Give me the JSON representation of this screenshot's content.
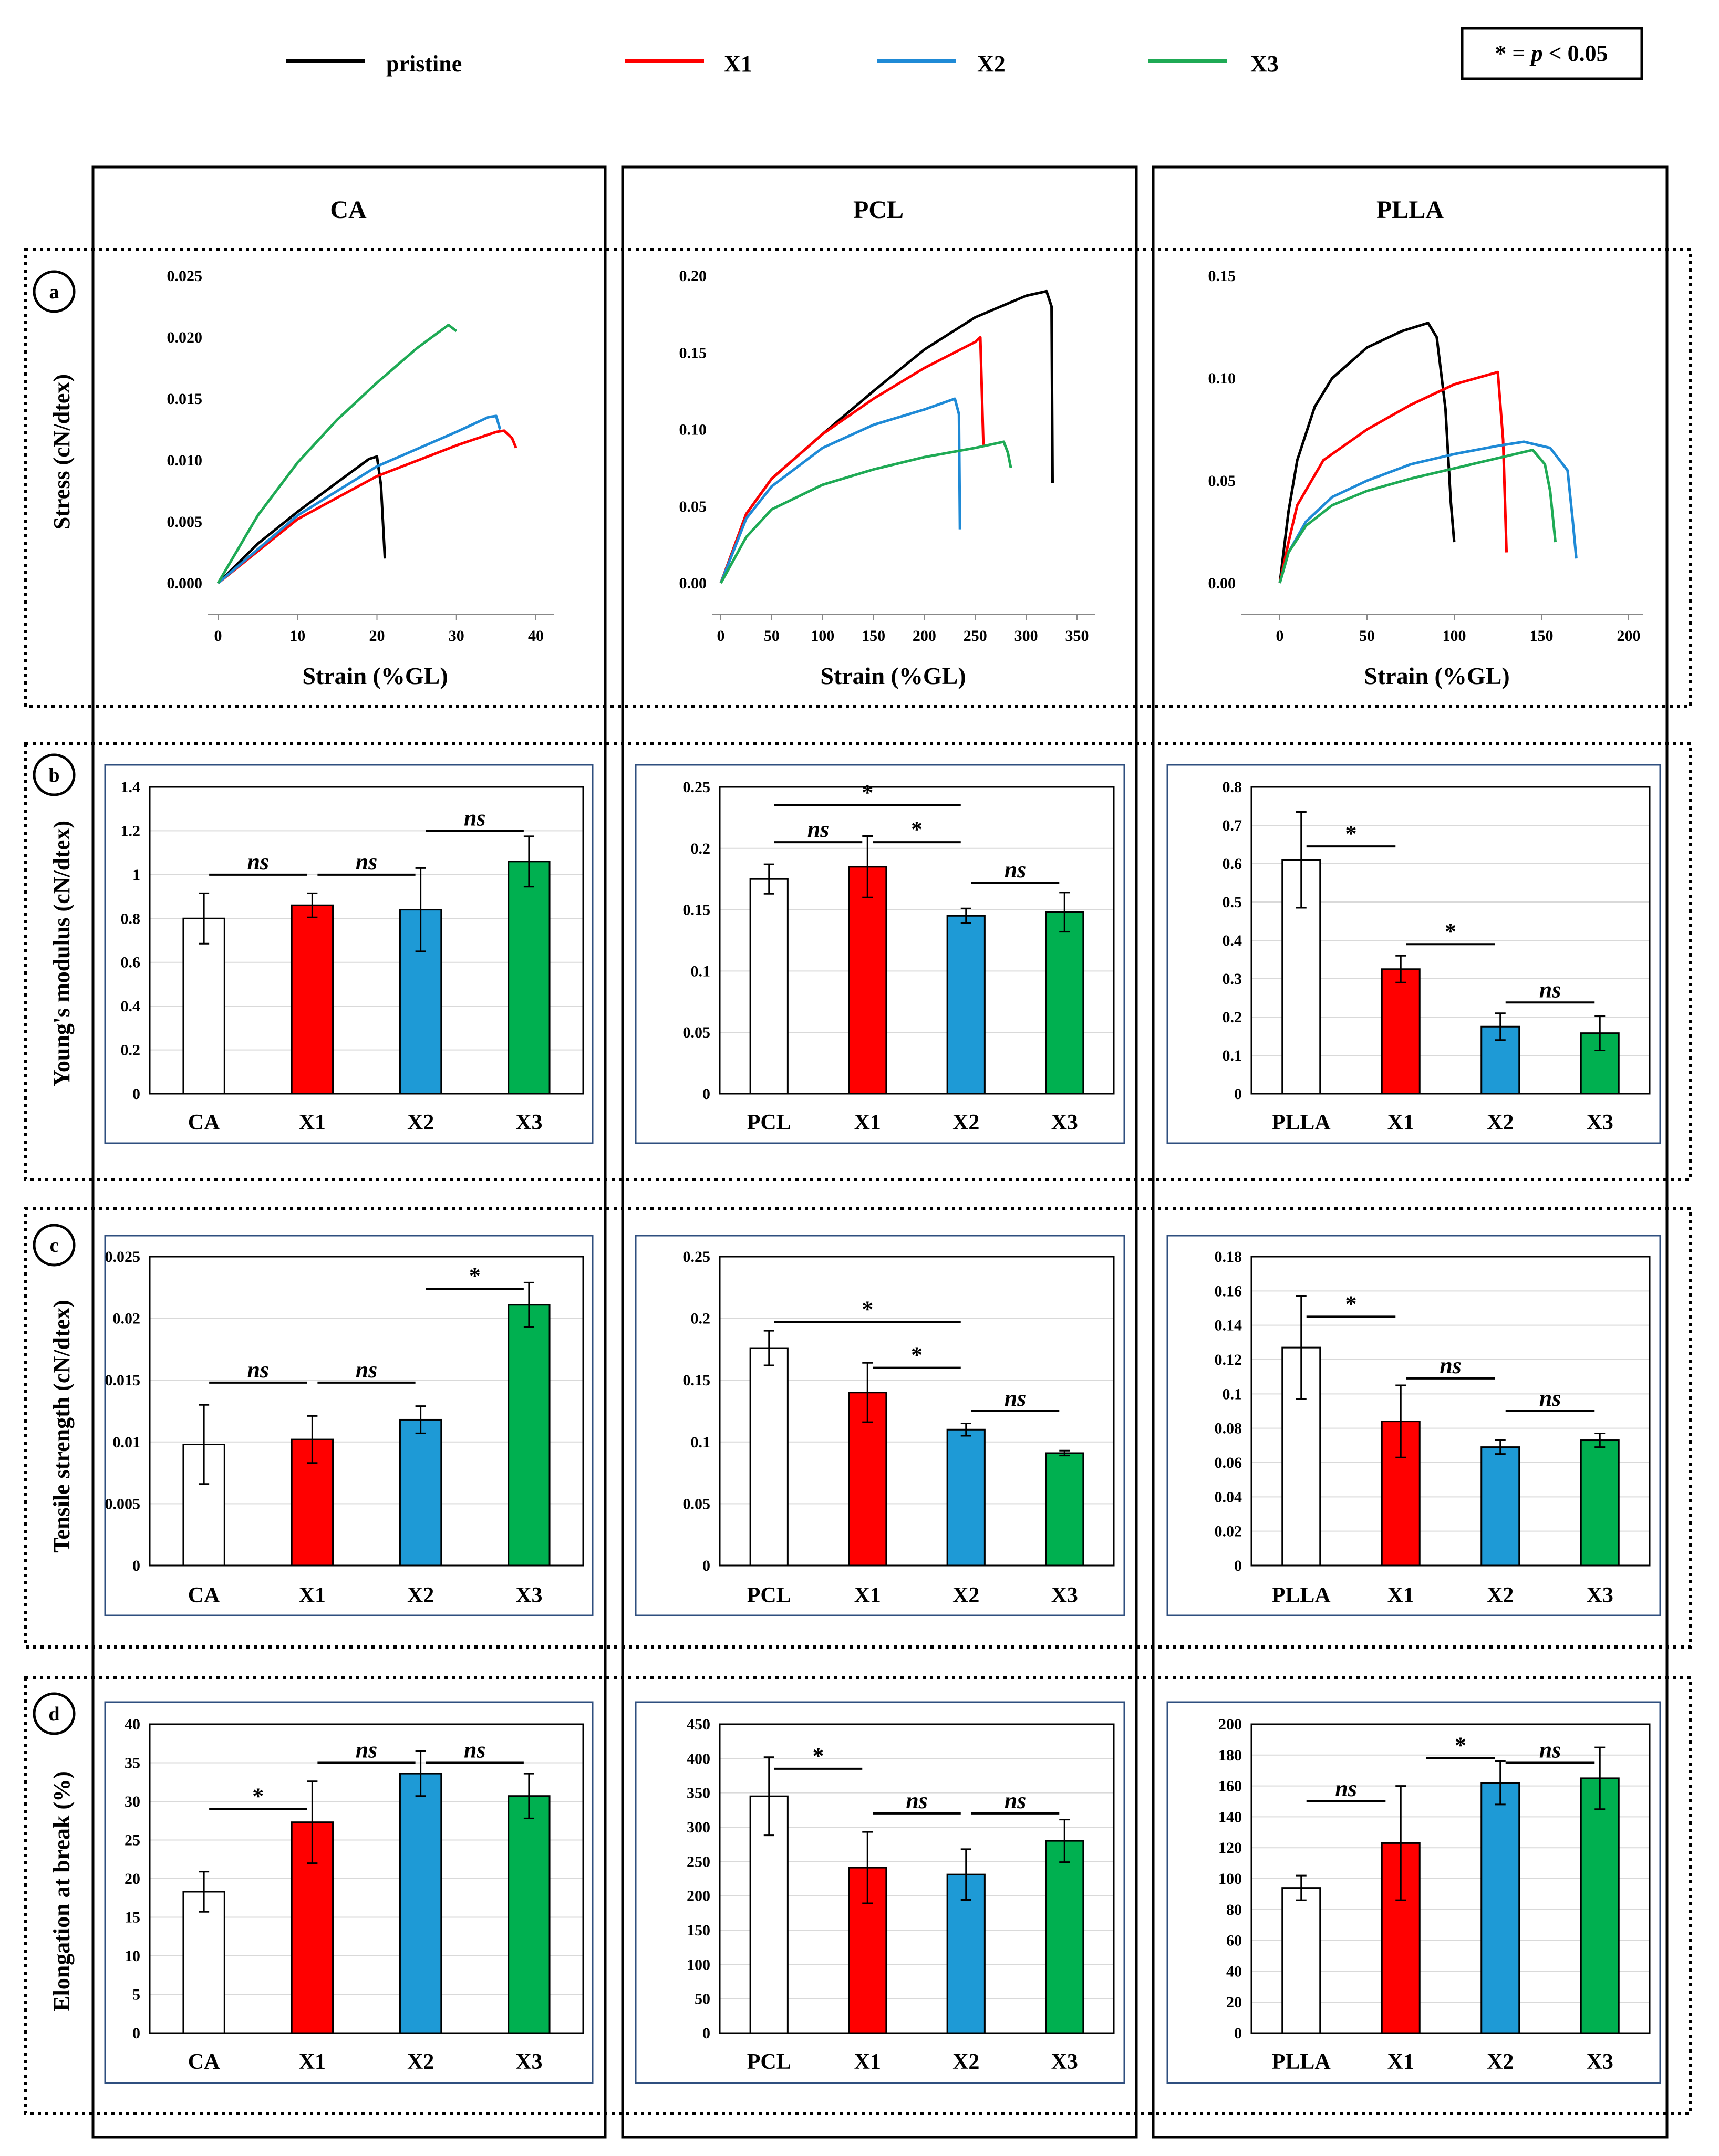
{
  "legend": {
    "items": [
      {
        "label": "pristine",
        "color": "#000000"
      },
      {
        "label": "X1",
        "color": "#ff0000"
      },
      {
        "label": "X2",
        "color": "#1f8ad6"
      },
      {
        "label": "X3",
        "color": "#1faa55"
      }
    ],
    "significance_prefix": "* = ",
    "significance_p": "p",
    "significance_suffix": " < 0.05"
  },
  "columns": [
    "CA",
    "PCL",
    "PLLA"
  ],
  "rows": [
    {
      "letter": "a",
      "ylabel": "Stress (cN/dtex)",
      "xlabel": "Strain (%GL)"
    },
    {
      "letter": "b",
      "ylabel": "Young's modulus (cN/dtex)"
    },
    {
      "letter": "c",
      "ylabel": "Tensile strength (cN/dtex)"
    },
    {
      "letter": "d",
      "ylabel": "Elongation at break (%)"
    }
  ],
  "colors": {
    "pristine_bar": "#ffffff",
    "X1": "#ff0000",
    "X2": "#1e9ad6",
    "X3": "#00b050"
  },
  "chart_data": [
    {
      "type": "line",
      "id": "ss-CA",
      "xlabel": "Strain (%GL)",
      "ylabel": "Stress (cN/dtex)",
      "xlim": [
        -5,
        42
      ],
      "ylim": [
        -0.002,
        0.025
      ],
      "xticks": [
        "0",
        "10",
        "20",
        "30",
        "40"
      ],
      "yticks": [
        "0.000",
        "0.005",
        "0.010",
        "0.015",
        "0.020",
        "0.025"
      ],
      "series": [
        {
          "name": "pristine",
          "x": [
            0,
            5,
            10,
            15,
            19,
            20,
            20.5,
            21
          ],
          "y": [
            0,
            0.0032,
            0.0058,
            0.0082,
            0.0101,
            0.0103,
            0.008,
            0.002
          ]
        },
        {
          "name": "X1",
          "x": [
            0,
            10,
            20,
            30,
            35,
            36,
            37,
            37.5
          ],
          "y": [
            0,
            0.0052,
            0.0087,
            0.0112,
            0.0123,
            0.0124,
            0.0118,
            0.011
          ]
        },
        {
          "name": "X2",
          "x": [
            0,
            10,
            20,
            30,
            34,
            35,
            35.5
          ],
          "y": [
            0,
            0.0055,
            0.0095,
            0.0123,
            0.0135,
            0.0136,
            0.0125
          ]
        },
        {
          "name": "X3",
          "x": [
            0,
            5,
            10,
            15,
            20,
            25,
            29,
            30
          ],
          "y": [
            0,
            0.0055,
            0.0098,
            0.0133,
            0.0163,
            0.0191,
            0.021,
            0.0205
          ]
        }
      ]
    },
    {
      "type": "line",
      "id": "ss-PCL",
      "xlabel": "Strain (%GL)",
      "ylabel": "Stress (cN/dtex)",
      "xlim": [
        -10,
        365
      ],
      "ylim": [
        -0.015,
        0.22
      ],
      "xticks": [
        "0",
        "50",
        "100",
        "150",
        "200",
        "250",
        "300",
        "350"
      ],
      "yticks": [
        "0.00",
        "0.05",
        "0.10",
        "0.15",
        "0.20"
      ],
      "series": [
        {
          "name": "pristine",
          "x": [
            0,
            25,
            50,
            100,
            150,
            200,
            250,
            300,
            320,
            325,
            326
          ],
          "y": [
            0,
            0.045,
            0.068,
            0.097,
            0.125,
            0.152,
            0.173,
            0.187,
            0.19,
            0.18,
            0.065
          ]
        },
        {
          "name": "X1",
          "x": [
            0,
            25,
            50,
            100,
            150,
            200,
            250,
            255,
            258
          ],
          "y": [
            0,
            0.045,
            0.068,
            0.097,
            0.12,
            0.14,
            0.157,
            0.16,
            0.09
          ]
        },
        {
          "name": "X2",
          "x": [
            0,
            25,
            50,
            100,
            150,
            200,
            230,
            234,
            235
          ],
          "y": [
            0,
            0.042,
            0.063,
            0.088,
            0.103,
            0.113,
            0.12,
            0.11,
            0.035
          ]
        },
        {
          "name": "X3",
          "x": [
            0,
            25,
            50,
            100,
            150,
            200,
            250,
            278,
            282,
            285
          ],
          "y": [
            0,
            0.03,
            0.048,
            0.064,
            0.074,
            0.082,
            0.088,
            0.092,
            0.085,
            0.075
          ]
        }
      ]
    },
    {
      "type": "line",
      "id": "ss-PLLA",
      "xlabel": "Strain (%GL)",
      "ylabel": "Stress (cN/dtex)",
      "xlim": [
        -5,
        205
      ],
      "ylim": [
        -0.02,
        0.15
      ],
      "xticks": [
        "0",
        "50",
        "100",
        "150",
        "200"
      ],
      "yticks": [
        "0.00",
        "0.05",
        "0.10",
        "0.15"
      ],
      "series": [
        {
          "name": "pristine",
          "x": [
            0,
            5,
            10,
            20,
            30,
            50,
            70,
            85,
            90,
            95,
            98,
            100
          ],
          "y": [
            0,
            0.035,
            0.06,
            0.086,
            0.1,
            0.115,
            0.123,
            0.127,
            0.12,
            0.085,
            0.04,
            0.02
          ]
        },
        {
          "name": "X1",
          "x": [
            0,
            5,
            10,
            25,
            50,
            75,
            100,
            125,
            128,
            130
          ],
          "y": [
            0,
            0.02,
            0.038,
            0.06,
            0.075,
            0.087,
            0.097,
            0.103,
            0.07,
            0.015
          ]
        },
        {
          "name": "X2",
          "x": [
            0,
            5,
            15,
            30,
            50,
            75,
            100,
            125,
            140,
            155,
            165,
            168,
            170
          ],
          "y": [
            0,
            0.015,
            0.03,
            0.042,
            0.05,
            0.058,
            0.063,
            0.067,
            0.069,
            0.066,
            0.055,
            0.03,
            0.012
          ]
        },
        {
          "name": "X3",
          "x": [
            0,
            5,
            15,
            30,
            50,
            75,
            100,
            125,
            145,
            152,
            155,
            158
          ],
          "y": [
            0,
            0.015,
            0.028,
            0.038,
            0.045,
            0.051,
            0.056,
            0.061,
            0.065,
            0.058,
            0.045,
            0.02
          ]
        }
      ]
    },
    {
      "type": "bar",
      "id": "ym-CA",
      "categories": [
        "CA",
        "X1",
        "X2",
        "X3"
      ],
      "values": [
        0.8,
        0.86,
        0.84,
        1.06
      ],
      "errors": [
        0.115,
        0.055,
        0.19,
        0.115
      ],
      "ylim": [
        0,
        1.4
      ],
      "yticks": [
        "0",
        "0.2",
        "0.4",
        "0.6",
        "0.8",
        "1",
        "1.2",
        "1.4"
      ],
      "annotations": [
        {
          "from": 0,
          "to": 1,
          "text": "ns",
          "y": 1.0
        },
        {
          "from": 1,
          "to": 2,
          "text": "ns",
          "y": 1.0
        },
        {
          "from": 2,
          "to": 3,
          "text": "ns",
          "y": 1.2
        }
      ]
    },
    {
      "type": "bar",
      "id": "ym-PCL",
      "categories": [
        "PCL",
        "X1",
        "X2",
        "X3"
      ],
      "values": [
        0.175,
        0.185,
        0.145,
        0.148
      ],
      "errors": [
        0.012,
        0.025,
        0.006,
        0.016
      ],
      "ylim": [
        0,
        0.25
      ],
      "yticks": [
        "0",
        "0.05",
        "0.1",
        "0.15",
        "0.2",
        "0.25"
      ],
      "annotations": [
        {
          "from": 0,
          "to": 2,
          "text": "*",
          "y": 0.235
        },
        {
          "from": 0,
          "to": 1,
          "text": "ns",
          "y": 0.205
        },
        {
          "from": 1,
          "to": 2,
          "text": "*",
          "y": 0.205
        },
        {
          "from": 2,
          "to": 3,
          "text": "ns",
          "y": 0.172
        }
      ]
    },
    {
      "type": "bar",
      "id": "ym-PLLA",
      "categories": [
        "PLLA",
        "X1",
        "X2",
        "X3"
      ],
      "values": [
        0.61,
        0.325,
        0.175,
        0.158
      ],
      "errors": [
        0.125,
        0.035,
        0.035,
        0.045
      ],
      "ylim": [
        0,
        0.8
      ],
      "yticks": [
        "0",
        "0.1",
        "0.2",
        "0.3",
        "0.4",
        "0.5",
        "0.6",
        "0.7",
        "0.8"
      ],
      "annotations": [
        {
          "from": 0,
          "to": 1,
          "text": "*",
          "y": 0.645
        },
        {
          "from": 1,
          "to": 2,
          "text": "*",
          "y": 0.39
        },
        {
          "from": 2,
          "to": 3,
          "text": "ns",
          "y": 0.238
        }
      ]
    },
    {
      "type": "bar",
      "id": "ts-CA",
      "categories": [
        "CA",
        "X1",
        "X2",
        "X3"
      ],
      "values": [
        0.0098,
        0.0102,
        0.0118,
        0.0211
      ],
      "errors": [
        0.0032,
        0.0019,
        0.0011,
        0.0018
      ],
      "ylim": [
        0,
        0.025
      ],
      "yticks": [
        "0",
        "0.005",
        "0.01",
        "0.015",
        "0.02",
        "0.025"
      ],
      "annotations": [
        {
          "from": 0,
          "to": 1,
          "text": "ns",
          "y": 0.0148
        },
        {
          "from": 1,
          "to": 2,
          "text": "ns",
          "y": 0.0148
        },
        {
          "from": 2,
          "to": 3,
          "text": "*",
          "y": 0.0224
        }
      ]
    },
    {
      "type": "bar",
      "id": "ts-PCL",
      "categories": [
        "PCL",
        "X1",
        "X2",
        "X3"
      ],
      "values": [
        0.176,
        0.14,
        0.11,
        0.091
      ],
      "errors": [
        0.014,
        0.024,
        0.005,
        0.002
      ],
      "ylim": [
        0,
        0.25
      ],
      "yticks": [
        "0",
        "0.05",
        "0.1",
        "0.15",
        "0.2",
        "0.25"
      ],
      "annotations": [
        {
          "from": 0,
          "to": 2,
          "text": "*",
          "y": 0.197
        },
        {
          "from": 1,
          "to": 2,
          "text": "*",
          "y": 0.16
        },
        {
          "from": 2,
          "to": 3,
          "text": "ns",
          "y": 0.125
        }
      ]
    },
    {
      "type": "bar",
      "id": "ts-PLLA",
      "categories": [
        "PLLA",
        "X1",
        "X2",
        "X3"
      ],
      "values": [
        0.127,
        0.084,
        0.069,
        0.073
      ],
      "errors": [
        0.03,
        0.021,
        0.004,
        0.004
      ],
      "ylim": [
        0,
        0.18
      ],
      "yticks": [
        "0",
        "0.02",
        "0.04",
        "0.06",
        "0.08",
        "0.1",
        "0.12",
        "0.14",
        "0.16",
        "0.18"
      ],
      "annotations": [
        {
          "from": 0,
          "to": 1,
          "text": "*",
          "y": 0.145
        },
        {
          "from": 1,
          "to": 2,
          "text": "ns",
          "y": 0.109
        },
        {
          "from": 2,
          "to": 3,
          "text": "ns",
          "y": 0.09
        }
      ]
    },
    {
      "type": "bar",
      "id": "eb-CA",
      "categories": [
        "CA",
        "X1",
        "X2",
        "X3"
      ],
      "values": [
        18.3,
        27.3,
        33.6,
        30.7
      ],
      "errors": [
        2.6,
        5.3,
        2.9,
        2.9
      ],
      "ylim": [
        0,
        40
      ],
      "yticks": [
        "0",
        "5",
        "10",
        "15",
        "20",
        "25",
        "30",
        "35",
        "40"
      ],
      "annotations": [
        {
          "from": 0,
          "to": 1,
          "text": "*",
          "y": 29
        },
        {
          "from": 1,
          "to": 2,
          "text": "ns",
          "y": 35
        },
        {
          "from": 2,
          "to": 3,
          "text": "ns",
          "y": 35
        }
      ]
    },
    {
      "type": "bar",
      "id": "eb-PCL",
      "categories": [
        "PCL",
        "X1",
        "X2",
        "X3"
      ],
      "values": [
        345,
        241,
        231,
        280
      ],
      "errors": [
        57,
        52,
        37,
        31
      ],
      "ylim": [
        0,
        450
      ],
      "yticks": [
        "0",
        "50",
        "100",
        "150",
        "200",
        "250",
        "300",
        "350",
        "400",
        "450"
      ],
      "annotations": [
        {
          "from": 0,
          "to": 1,
          "text": "*",
          "y": 385
        },
        {
          "from": 1,
          "to": 2,
          "text": "ns",
          "y": 320
        },
        {
          "from": 2,
          "to": 3,
          "text": "ns",
          "y": 320
        }
      ]
    },
    {
      "type": "bar",
      "id": "eb-PLLA",
      "categories": [
        "PLLA",
        "X1",
        "X2",
        "X3"
      ],
      "values": [
        94,
        123,
        162,
        165
      ],
      "errors": [
        8,
        37,
        14,
        20
      ],
      "ylim": [
        0,
        200
      ],
      "yticks": [
        "0",
        "20",
        "40",
        "60",
        "80",
        "100",
        "120",
        "140",
        "160",
        "180",
        "200"
      ],
      "annotations": [
        {
          "from": 0,
          "to": 0.9,
          "text": "ns",
          "y": 150
        },
        {
          "from": 1.2,
          "to": 2,
          "text": "*",
          "y": 178
        },
        {
          "from": 2,
          "to": 3,
          "text": "ns",
          "y": 175
        }
      ]
    }
  ]
}
